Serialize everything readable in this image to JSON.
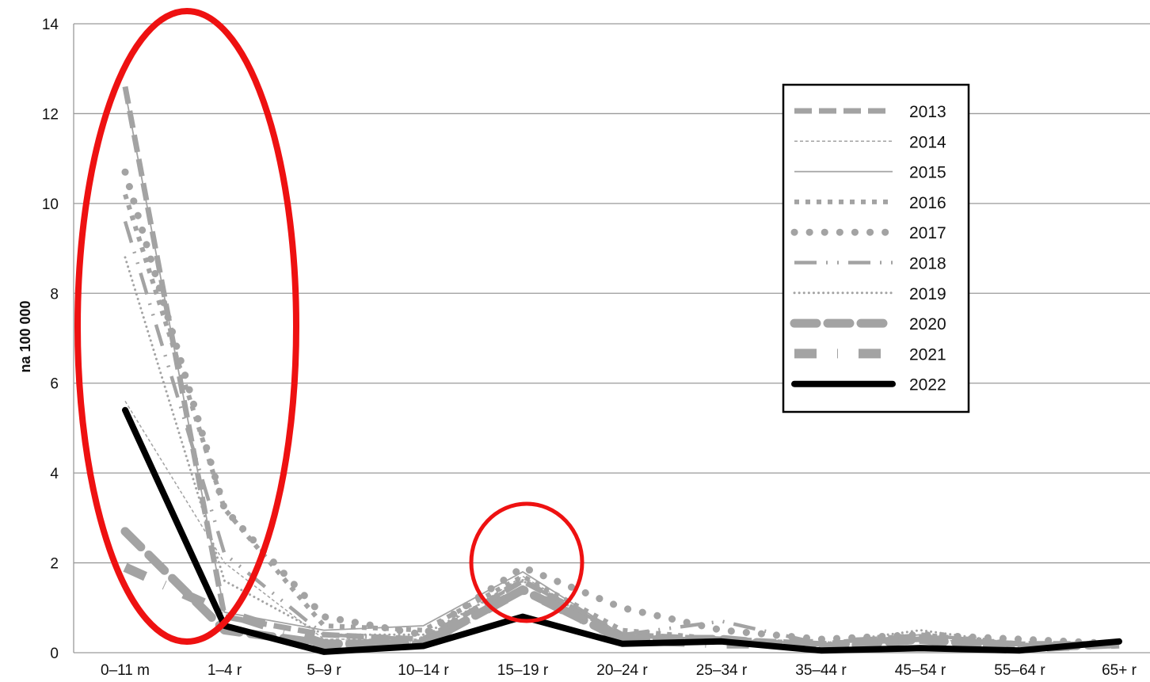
{
  "chart_data": {
    "type": "line",
    "title": "",
    "xlabel": "",
    "ylabel": "na 100 000",
    "ylim": [
      0,
      14
    ],
    "yticks": [
      "0",
      "2",
      "4",
      "6",
      "8",
      "10",
      "12",
      "14"
    ],
    "grid": true,
    "legend_position": "top-right",
    "categories": [
      "0–11 m",
      "1–4 r",
      "5–9 r",
      "10–14 r",
      "15–19 r",
      "20–24 r",
      "25–34 r",
      "35–44 r",
      "45–54 r",
      "55–64 r",
      "65+ r"
    ],
    "series": [
      {
        "name": "2013",
        "values": [
          12.6,
          0.8,
          0.4,
          0.3,
          1.6,
          0.4,
          0.3,
          0.2,
          0.3,
          0.2,
          0.2
        ]
      },
      {
        "name": "2014",
        "values": [
          5.6,
          2.0,
          0.3,
          0.3,
          1.7,
          0.4,
          0.3,
          0.2,
          0.3,
          0.2,
          0.2
        ]
      },
      {
        "name": "2015",
        "values": [
          12.5,
          0.9,
          0.5,
          0.6,
          1.8,
          0.4,
          0.3,
          0.2,
          0.4,
          0.2,
          0.2
        ]
      },
      {
        "name": "2016",
        "values": [
          10.2,
          3.2,
          0.6,
          0.5,
          1.7,
          0.5,
          0.3,
          0.2,
          0.4,
          0.2,
          0.2
        ]
      },
      {
        "name": "2017",
        "values": [
          10.7,
          3.2,
          0.8,
          0.4,
          1.9,
          1.0,
          0.5,
          0.3,
          0.4,
          0.3,
          0.2
        ]
      },
      {
        "name": "2018",
        "values": [
          9.6,
          2.2,
          0.4,
          0.3,
          1.6,
          0.4,
          0.7,
          0.2,
          0.4,
          0.2,
          0.2
        ]
      },
      {
        "name": "2019",
        "values": [
          8.8,
          1.6,
          0.4,
          0.4,
          1.6,
          0.4,
          0.3,
          0.2,
          0.5,
          0.2,
          0.2
        ]
      },
      {
        "name": "2020",
        "values": [
          2.7,
          0.5,
          0.2,
          0.2,
          1.4,
          0.3,
          0.3,
          0.1,
          0.3,
          0.1,
          0.2
        ]
      },
      {
        "name": "2021",
        "values": [
          1.9,
          0.9,
          0.2,
          0.2,
          1.4,
          0.3,
          0.2,
          0.2,
          0.3,
          0.1,
          0.2
        ]
      },
      {
        "name": "2022",
        "values": [
          5.4,
          0.6,
          0.02,
          0.15,
          0.8,
          0.2,
          0.25,
          0.05,
          0.1,
          0.05,
          0.25
        ]
      }
    ],
    "series_colors": {
      "grey": "#a3a3a3",
      "black": "#000000",
      "highlight_red": "#ee1111"
    }
  }
}
